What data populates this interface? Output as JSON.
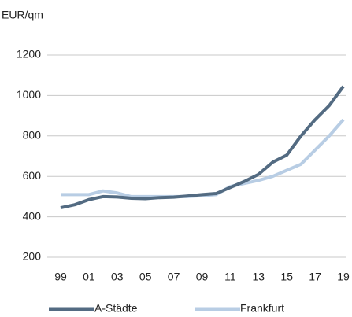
{
  "chart_data": {
    "type": "line",
    "y_axis_label": "EUR/qm",
    "categories": [
      "99",
      null,
      "01",
      null,
      "03",
      null,
      "05",
      null,
      "07",
      null,
      "09",
      null,
      "11",
      null,
      "13",
      null,
      "15",
      null,
      "17",
      null,
      "19"
    ],
    "series": [
      {
        "name": "A-Städte",
        "color": "#536b82",
        "values": [
          445,
          460,
          485,
          500,
          498,
          492,
          490,
          495,
          497,
          503,
          510,
          515,
          545,
          575,
          610,
          670,
          705,
          800,
          880,
          950,
          1045
        ]
      },
      {
        "name": "Frankfurt",
        "color": "#b8cde4",
        "values": [
          510,
          510,
          510,
          528,
          518,
          500,
          500,
          500,
          500,
          500,
          505,
          510,
          550,
          565,
          580,
          600,
          630,
          660,
          730,
          800,
          880
        ]
      }
    ],
    "ylim": [
      200,
      1200
    ],
    "yticks": [
      200,
      400,
      600,
      800,
      1000,
      1200
    ],
    "grid": true,
    "legend": "bottom"
  }
}
